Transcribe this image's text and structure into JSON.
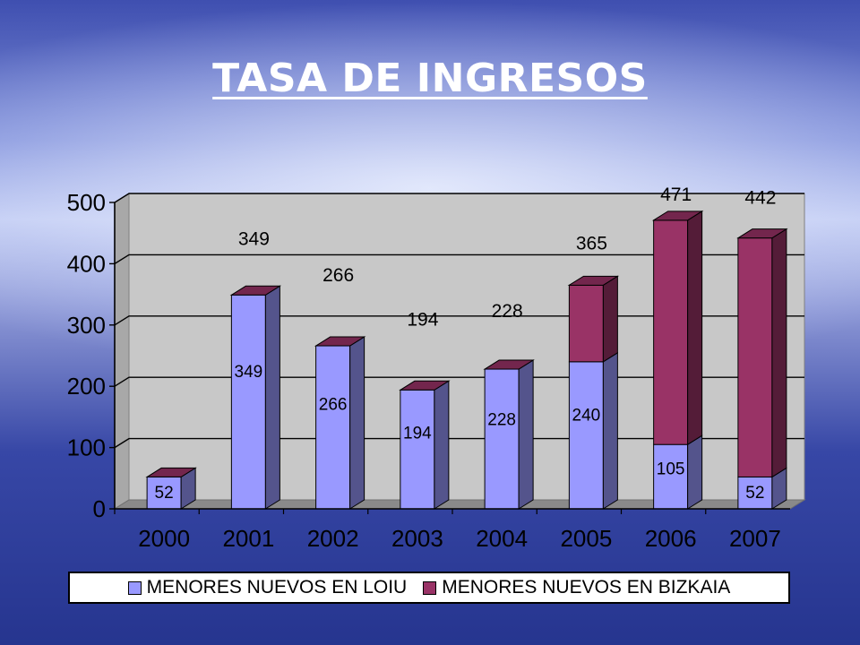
{
  "slide": {
    "title": "TASA DE INGRESOS"
  },
  "chart_data": {
    "type": "bar",
    "stacked": true,
    "three_d": true,
    "categories": [
      "2000",
      "2001",
      "2002",
      "2003",
      "2004",
      "2005",
      "2006",
      "2007"
    ],
    "series": [
      {
        "name": "MENORES NUEVOS EN LOIU",
        "values": [
          52,
          349,
          266,
          194,
          228,
          240,
          105,
          52
        ],
        "color": "#9999ff"
      },
      {
        "name": "MENORES NUEVOS EN BIZKAIA",
        "values": [
          0,
          0,
          0,
          0,
          0,
          125,
          366,
          390
        ],
        "color": "#993366"
      }
    ],
    "totals": [
      "",
      "349",
      "266",
      "194",
      "228",
      "365",
      "471",
      "442"
    ],
    "inside_labels": [
      "52",
      "349",
      "266",
      "194",
      "228",
      "240",
      "105",
      "52"
    ],
    "yticks": [
      "0",
      "100",
      "200",
      "300",
      "400",
      "500"
    ],
    "ylim": [
      0,
      500
    ],
    "grid": true,
    "legend_position": "bottom"
  }
}
